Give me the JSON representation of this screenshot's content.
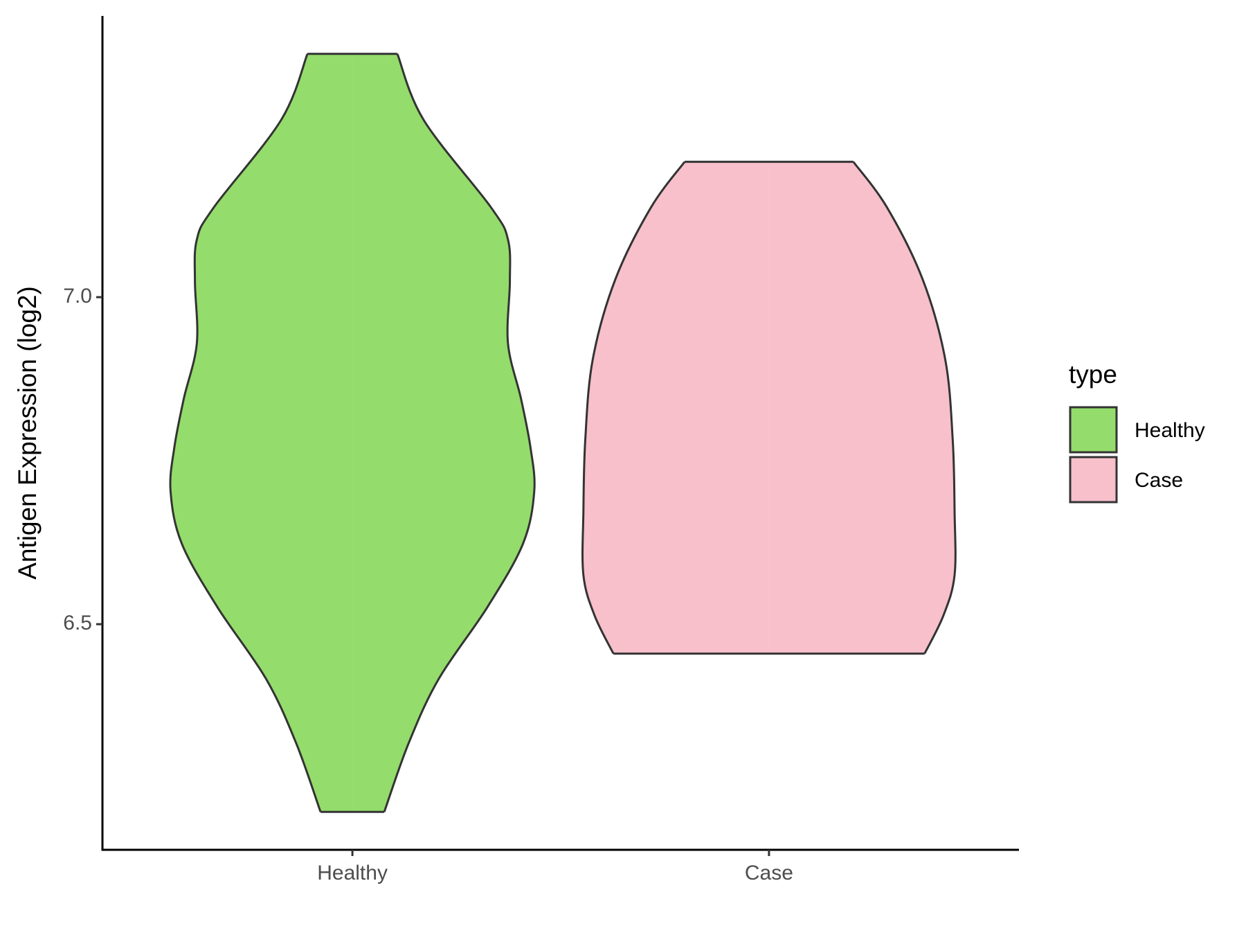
{
  "chart_data": {
    "type": "violin",
    "y_label": "Antigen Expression (log2)",
    "categories": [
      "Healthy",
      "Case"
    ],
    "legend_title": "type",
    "legend": "right",
    "series": [
      {
        "name": "Healthy",
        "color": "#94dc6b",
        "y": [
          7.372,
          7.271,
          7.137,
          7.088,
          7.024,
          6.929,
          6.844,
          6.77,
          6.703,
          6.623,
          6.526,
          6.416,
          6.318,
          6.213
        ],
        "density": [
          0.24,
          0.38,
          0.74,
          0.83,
          0.84,
          0.83,
          0.9,
          0.95,
          0.97,
          0.91,
          0.72,
          0.46,
          0.3,
          0.17
        ]
      },
      {
        "name": "Case",
        "color": "#f7c0cb",
        "y": [
          7.207,
          7.137,
          7.027,
          6.905,
          6.782,
          6.672,
          6.575,
          6.513,
          6.455
        ],
        "density": [
          0.45,
          0.63,
          0.82,
          0.94,
          0.98,
          0.99,
          0.99,
          0.93,
          0.83
        ]
      }
    ],
    "ylim": [
      6.155,
      7.43
    ],
    "yticks": [
      {
        "value": 6.5,
        "label": "6.5"
      },
      {
        "value": 7,
        "label": "7.0"
      }
    ]
  }
}
